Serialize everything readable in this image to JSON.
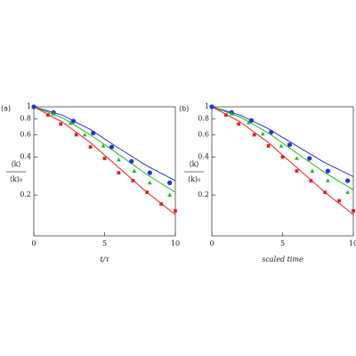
{
  "chart_data": [
    {
      "type": "scatter",
      "panel": "(a)",
      "xlabel": "t/τ",
      "ylabel": {
        "numerator": "⟨k⟩",
        "denominator": "⟨k⟩₀"
      },
      "xlim": [
        0,
        10
      ],
      "ylim": [
        0.095,
        1
      ],
      "log_y": true,
      "xticks": [
        0,
        5,
        10
      ],
      "yticks": [
        1,
        0.8,
        0.6,
        0.4,
        0.2
      ],
      "series": [
        {
          "color": "#2233dd",
          "marker": "line",
          "x": [
            0,
            2,
            4,
            6,
            8,
            10
          ],
          "values": [
            1,
            0.86,
            0.66,
            0.47,
            0.34,
            0.26
          ]
        },
        {
          "color": "#22bb22",
          "marker": "line",
          "x": [
            0,
            2,
            4,
            6,
            8,
            10
          ],
          "values": [
            1,
            0.82,
            0.6,
            0.42,
            0.29,
            0.21
          ]
        },
        {
          "color": "#dd2222",
          "marker": "line",
          "x": [
            0,
            2,
            4,
            6,
            8,
            10
          ],
          "values": [
            1,
            0.76,
            0.52,
            0.33,
            0.21,
            0.14
          ]
        },
        {
          "color": "#2233dd",
          "marker": "circle",
          "x": [
            0,
            1.4,
            2.8,
            4.2,
            5.5,
            6.9,
            8.2,
            9.6
          ],
          "values": [
            1,
            0.9,
            0.77,
            0.62,
            0.48,
            0.37,
            0.3,
            0.25
          ]
        },
        {
          "color": "#22bb22",
          "marker": "triangle",
          "x": [
            1.4,
            2.6,
            3.6,
            4.9,
            6,
            7.1,
            8.2,
            9.6
          ],
          "values": [
            0.88,
            0.74,
            0.6,
            0.49,
            0.38,
            0.31,
            0.25,
            0.2
          ]
        },
        {
          "color": "#dd2222",
          "marker": "square",
          "x": [
            1,
            1.9,
            3,
            4,
            5,
            6,
            7,
            8,
            9,
            10
          ],
          "values": [
            0.86,
            0.73,
            0.6,
            0.48,
            0.39,
            0.3,
            0.26,
            0.21,
            0.17,
            0.15
          ]
        }
      ]
    },
    {
      "type": "scatter",
      "panel": "(b)",
      "xlabel": "scaled time",
      "ylabel": {
        "numerator": "⟨k⟩",
        "denominator": "⟨k⟩₀"
      },
      "xlim": [
        0,
        10
      ],
      "ylim": [
        0.095,
        1
      ],
      "log_y": true,
      "xticks": [
        0,
        5,
        10
      ],
      "yticks": [
        1,
        0.8,
        0.6,
        0.4,
        0.2
      ],
      "series": [
        {
          "color": "#2233dd",
          "marker": "line",
          "x": [
            0,
            2,
            4,
            6,
            8,
            10
          ],
          "values": [
            1,
            0.86,
            0.67,
            0.49,
            0.36,
            0.28
          ]
        },
        {
          "color": "#22bb22",
          "marker": "line",
          "x": [
            0,
            2,
            4,
            6,
            8,
            10
          ],
          "values": [
            1,
            0.83,
            0.62,
            0.43,
            0.3,
            0.22
          ]
        },
        {
          "color": "#dd2222",
          "marker": "line",
          "x": [
            0,
            2,
            4,
            6,
            8,
            10
          ],
          "values": [
            1,
            0.76,
            0.52,
            0.33,
            0.21,
            0.14
          ]
        },
        {
          "color": "#2233dd",
          "marker": "circle",
          "x": [
            0,
            1.4,
            2.8,
            4.2,
            5.5,
            6.9,
            8.2,
            9.6
          ],
          "values": [
            1,
            0.9,
            0.78,
            0.63,
            0.5,
            0.39,
            0.31,
            0.26
          ]
        },
        {
          "color": "#22bb22",
          "marker": "triangle",
          "x": [
            1.4,
            2.6,
            3.6,
            4.9,
            6,
            7.1,
            8.2,
            9.6
          ],
          "values": [
            0.88,
            0.75,
            0.61,
            0.49,
            0.39,
            0.31,
            0.26,
            0.21
          ]
        },
        {
          "color": "#dd2222",
          "marker": "square",
          "x": [
            1,
            1.9,
            3,
            4,
            5,
            6,
            7,
            8,
            9,
            10
          ],
          "values": [
            0.86,
            0.73,
            0.6,
            0.49,
            0.4,
            0.31,
            0.26,
            0.21,
            0.18,
            0.15
          ]
        }
      ]
    }
  ]
}
